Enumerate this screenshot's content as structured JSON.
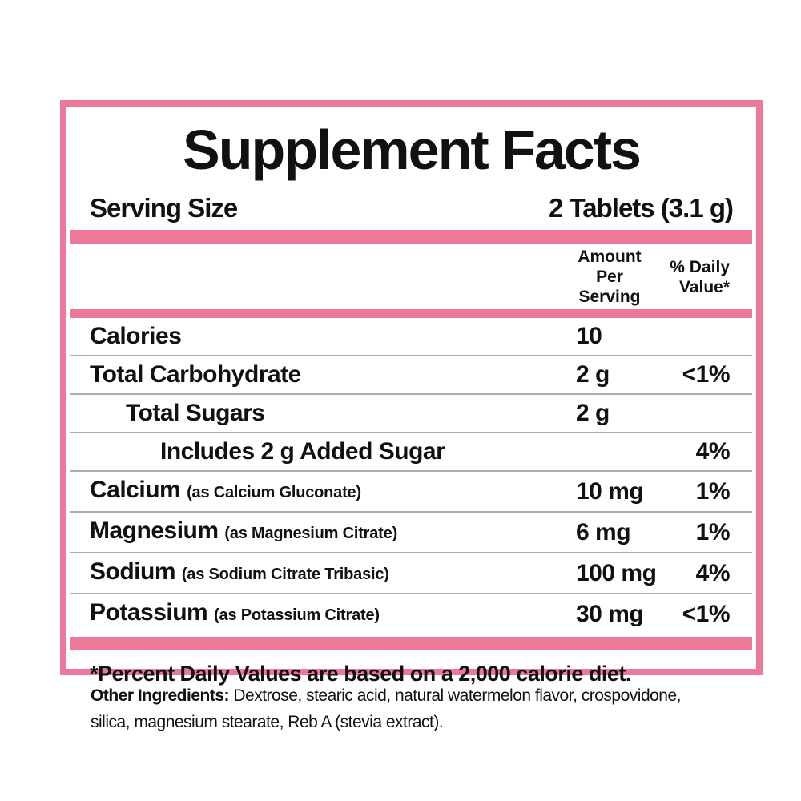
{
  "panel": {
    "title": "Supplement Facts",
    "serving": {
      "label": "Serving Size",
      "value": "2 Tablets (3.1 g)"
    },
    "columns": {
      "amount_line1": "Amount",
      "amount_line2": "Per Serving",
      "dv_line1": "% Daily",
      "dv_line2": "Value*"
    },
    "rows": [
      {
        "label": "Calories",
        "note": "",
        "amount": "10",
        "dv": "",
        "indent": 0
      },
      {
        "label": "Total Carbohydrate",
        "note": "",
        "amount": "2 g",
        "dv": "<1%",
        "indent": 0
      },
      {
        "label": "Total Sugars",
        "note": "",
        "amount": "2 g",
        "dv": "",
        "indent": 1
      },
      {
        "label": "Includes 2 g Added Sugar",
        "note": "",
        "amount": "",
        "dv": "4%",
        "indent": 2
      },
      {
        "label": "Calcium",
        "note": "(as Calcium Gluconate)",
        "amount": "10 mg",
        "dv": "1%",
        "indent": 0
      },
      {
        "label": "Magnesium",
        "note": "(as Magnesium Citrate)",
        "amount": "6 mg",
        "dv": "1%",
        "indent": 0
      },
      {
        "label": "Sodium",
        "note": "(as Sodium Citrate Tribasic)",
        "amount": "100 mg",
        "dv": "4%",
        "indent": 0
      },
      {
        "label": "Potassium",
        "note": "(as Potassium Citrate)",
        "amount": "30 mg",
        "dv": "<1%",
        "indent": 0
      }
    ],
    "footnote": "*Percent Daily Values are based on a 2,000 calorie diet."
  },
  "other_ingredients": {
    "label": "Other Ingredients:",
    "line1": "Dextrose, stearic acid, natural watermelon flavor, crospovidone,",
    "line2": "silica, magnesium stearate, Reb A (stevia extract)."
  },
  "colors": {
    "pink": "#ee7899",
    "separator": "#adadad",
    "text": "#111111"
  }
}
